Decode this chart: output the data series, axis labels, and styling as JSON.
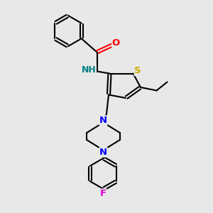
{
  "bg_color": "#e8e8e8",
  "bond_color": "#000000",
  "atom_colors": {
    "O": "#ff0000",
    "N": "#0000ff",
    "NH": "#008080",
    "S": "#ccaa00",
    "F": "#dd00dd"
  },
  "figsize": [
    3.0,
    3.0
  ],
  "dpi": 100
}
